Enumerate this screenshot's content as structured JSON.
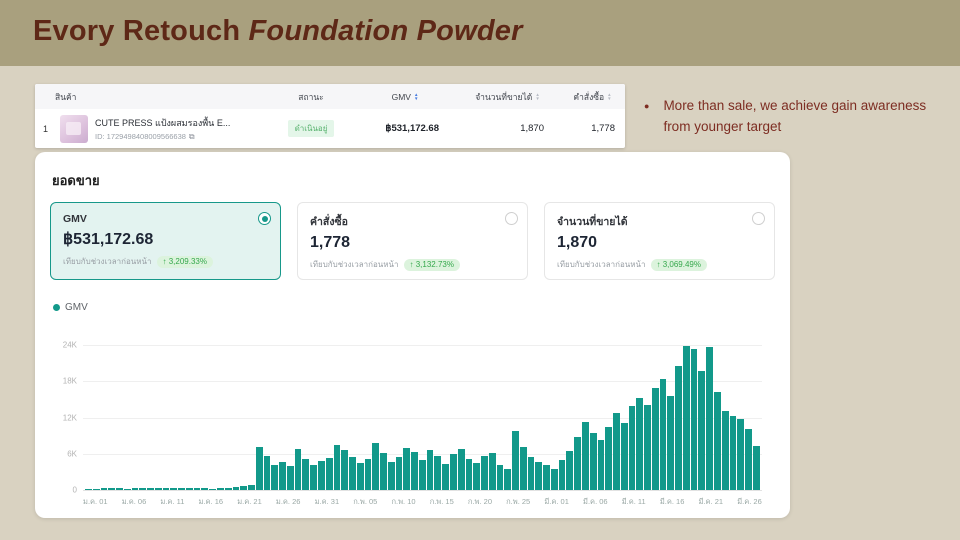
{
  "slide": {
    "title_regular": "Evory Retouch ",
    "title_italic": "Foundation Powder"
  },
  "annotation": {
    "text": "More than sale, we achieve gain awareness from younger target"
  },
  "icons": {
    "bullet": "●",
    "copy_icon": "⧉",
    "sort_up": "▲",
    "sort_down": "▼",
    "up_arrow": "↑"
  },
  "table": {
    "col_product": "สินค้า",
    "col_status": "สถานะ",
    "col_gmv": "GMV",
    "col_sold": "จำนวนที่ขายได้",
    "col_orders": "คำสั่งซื้อ",
    "row": {
      "index": "1",
      "product_name": "CUTE PRESS แป้งผสมรองพื้น E...",
      "product_id": "ID: 1729498408009566638",
      "status": "ดำเนินอยู่",
      "gmv": "฿531,172.68",
      "sold": "1,870",
      "orders": "1,778"
    }
  },
  "sales_card": {
    "title": "ยอดขาย",
    "legend": "GMV",
    "metrics": [
      {
        "label": "GMV",
        "value": "฿531,172.68",
        "compare_label": "เทียบกับช่วงเวลาก่อนหน้า",
        "change": "↑ 3,209.33%",
        "selected": true
      },
      {
        "label": "คำสั่งซื้อ",
        "value": "1,778",
        "compare_label": "เทียบกับช่วงเวลาก่อนหน้า",
        "change": "↑ 3,132.73%",
        "selected": false
      },
      {
        "label": "จำนวนที่ขายได้",
        "value": "1,870",
        "compare_label": "เทียบกับช่วงเวลาก่อนหน้า",
        "change": "↑ 3,069.49%",
        "selected": false
      }
    ]
  },
  "chart_data": {
    "type": "bar",
    "title": "ยอดขาย",
    "series_name": "GMV",
    "bar_color": "#12998a",
    "ylim": [
      0,
      24000
    ],
    "y_tick_labels": [
      "0",
      "6K",
      "12K",
      "18K",
      "24K"
    ],
    "x_tick_labels": [
      "ม.ค. 01",
      "ม.ค. 06",
      "ม.ค. 11",
      "ม.ค. 16",
      "ม.ค. 21",
      "ม.ค. 26",
      "ม.ค. 31",
      "ก.พ. 05",
      "ก.พ. 10",
      "ก.พ. 15",
      "ก.พ. 20",
      "ก.พ. 25",
      "มี.ค. 01",
      "มี.ค. 06",
      "มี.ค. 11",
      "มี.ค. 16",
      "มี.ค. 21",
      "มี.ค. 26"
    ],
    "values": [
      250,
      180,
      320,
      260,
      300,
      220,
      350,
      280,
      400,
      300,
      260,
      340,
      290,
      380,
      300,
      330,
      250,
      310,
      400,
      480,
      650,
      900,
      7200,
      5600,
      4100,
      4600,
      3900,
      6800,
      5100,
      4200,
      4800,
      5300,
      7400,
      6700,
      5500,
      4400,
      5100,
      7800,
      6100,
      4700,
      5500,
      7000,
      6300,
      4900,
      6600,
      5600,
      4300,
      5900,
      6800,
      5200,
      4500,
      5700,
      6200,
      4100,
      3500,
      9800,
      7100,
      5500,
      4700,
      4100,
      3500,
      4900,
      6500,
      8700,
      11200,
      9500,
      8300,
      10500,
      12700,
      11100,
      13900,
      15300,
      14100,
      16900,
      18300,
      15500,
      20500,
      23900,
      23400,
      19700,
      23700,
      16200,
      13100,
      12300,
      11700,
      10100,
      7300
    ]
  },
  "colors": {
    "slide_bg": "#d9d2c1",
    "header_bg": "#a9a07e",
    "title_text": "#5e2817",
    "accent_teal": "#12998a",
    "selected_card_bg": "#e3f3f0",
    "positive_green": "#35a84c",
    "status_green": "#58b26e"
  }
}
